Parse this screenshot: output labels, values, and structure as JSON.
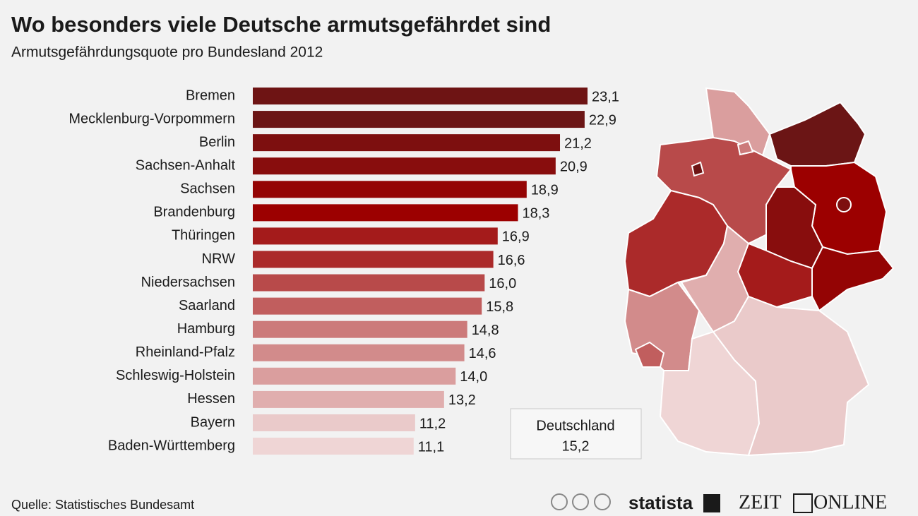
{
  "chart_data": {
    "type": "bar",
    "orientation": "horizontal",
    "title": "Wo besonders viele Deutsche armutsgefährdet sind",
    "subtitle": "Armutsgefährdungsquote pro Bundesland 2012",
    "categories": [
      "Bremen",
      "Mecklenburg-Vorpommern",
      "Berlin",
      "Sachsen-Anhalt",
      "Sachsen",
      "Brandenburg",
      "Thüringen",
      "NRW",
      "Niedersachsen",
      "Saarland",
      "Hamburg",
      "Rheinland-Pfalz",
      "Schleswig-Holstein",
      "Hessen",
      "Bayern",
      "Baden-Württemberg"
    ],
    "values": [
      23.1,
      22.9,
      21.2,
      20.9,
      18.9,
      18.3,
      16.9,
      16.6,
      16.0,
      15.8,
      14.8,
      14.6,
      14.0,
      13.2,
      11.2,
      11.1
    ],
    "value_labels": [
      "23,1",
      "22,9",
      "21,2",
      "20,9",
      "18,9",
      "18,3",
      "16,9",
      "16,6",
      "16,0",
      "15,8",
      "14,8",
      "14,6",
      "14,0",
      "13,2",
      "11,2",
      "11,1"
    ],
    "colors": [
      "#6e1414",
      "#6b1515",
      "#7d0f0f",
      "#880d0d",
      "#940404",
      "#9c0000",
      "#a41b1b",
      "#ab2a2a",
      "#b84a4a",
      "#c15e5e",
      "#cc7a7a",
      "#d28b8b",
      "#da9e9e",
      "#e0aeae",
      "#eacaca",
      "#efd5d5"
    ],
    "reference": {
      "name": "Deutschland",
      "value": 15.2,
      "value_label": "15,2"
    },
    "source": "Quelle: Statistisches Bundesamt",
    "logos": {
      "statista": "statista",
      "zeit": "ZEIT",
      "online": "ONLINE"
    }
  }
}
